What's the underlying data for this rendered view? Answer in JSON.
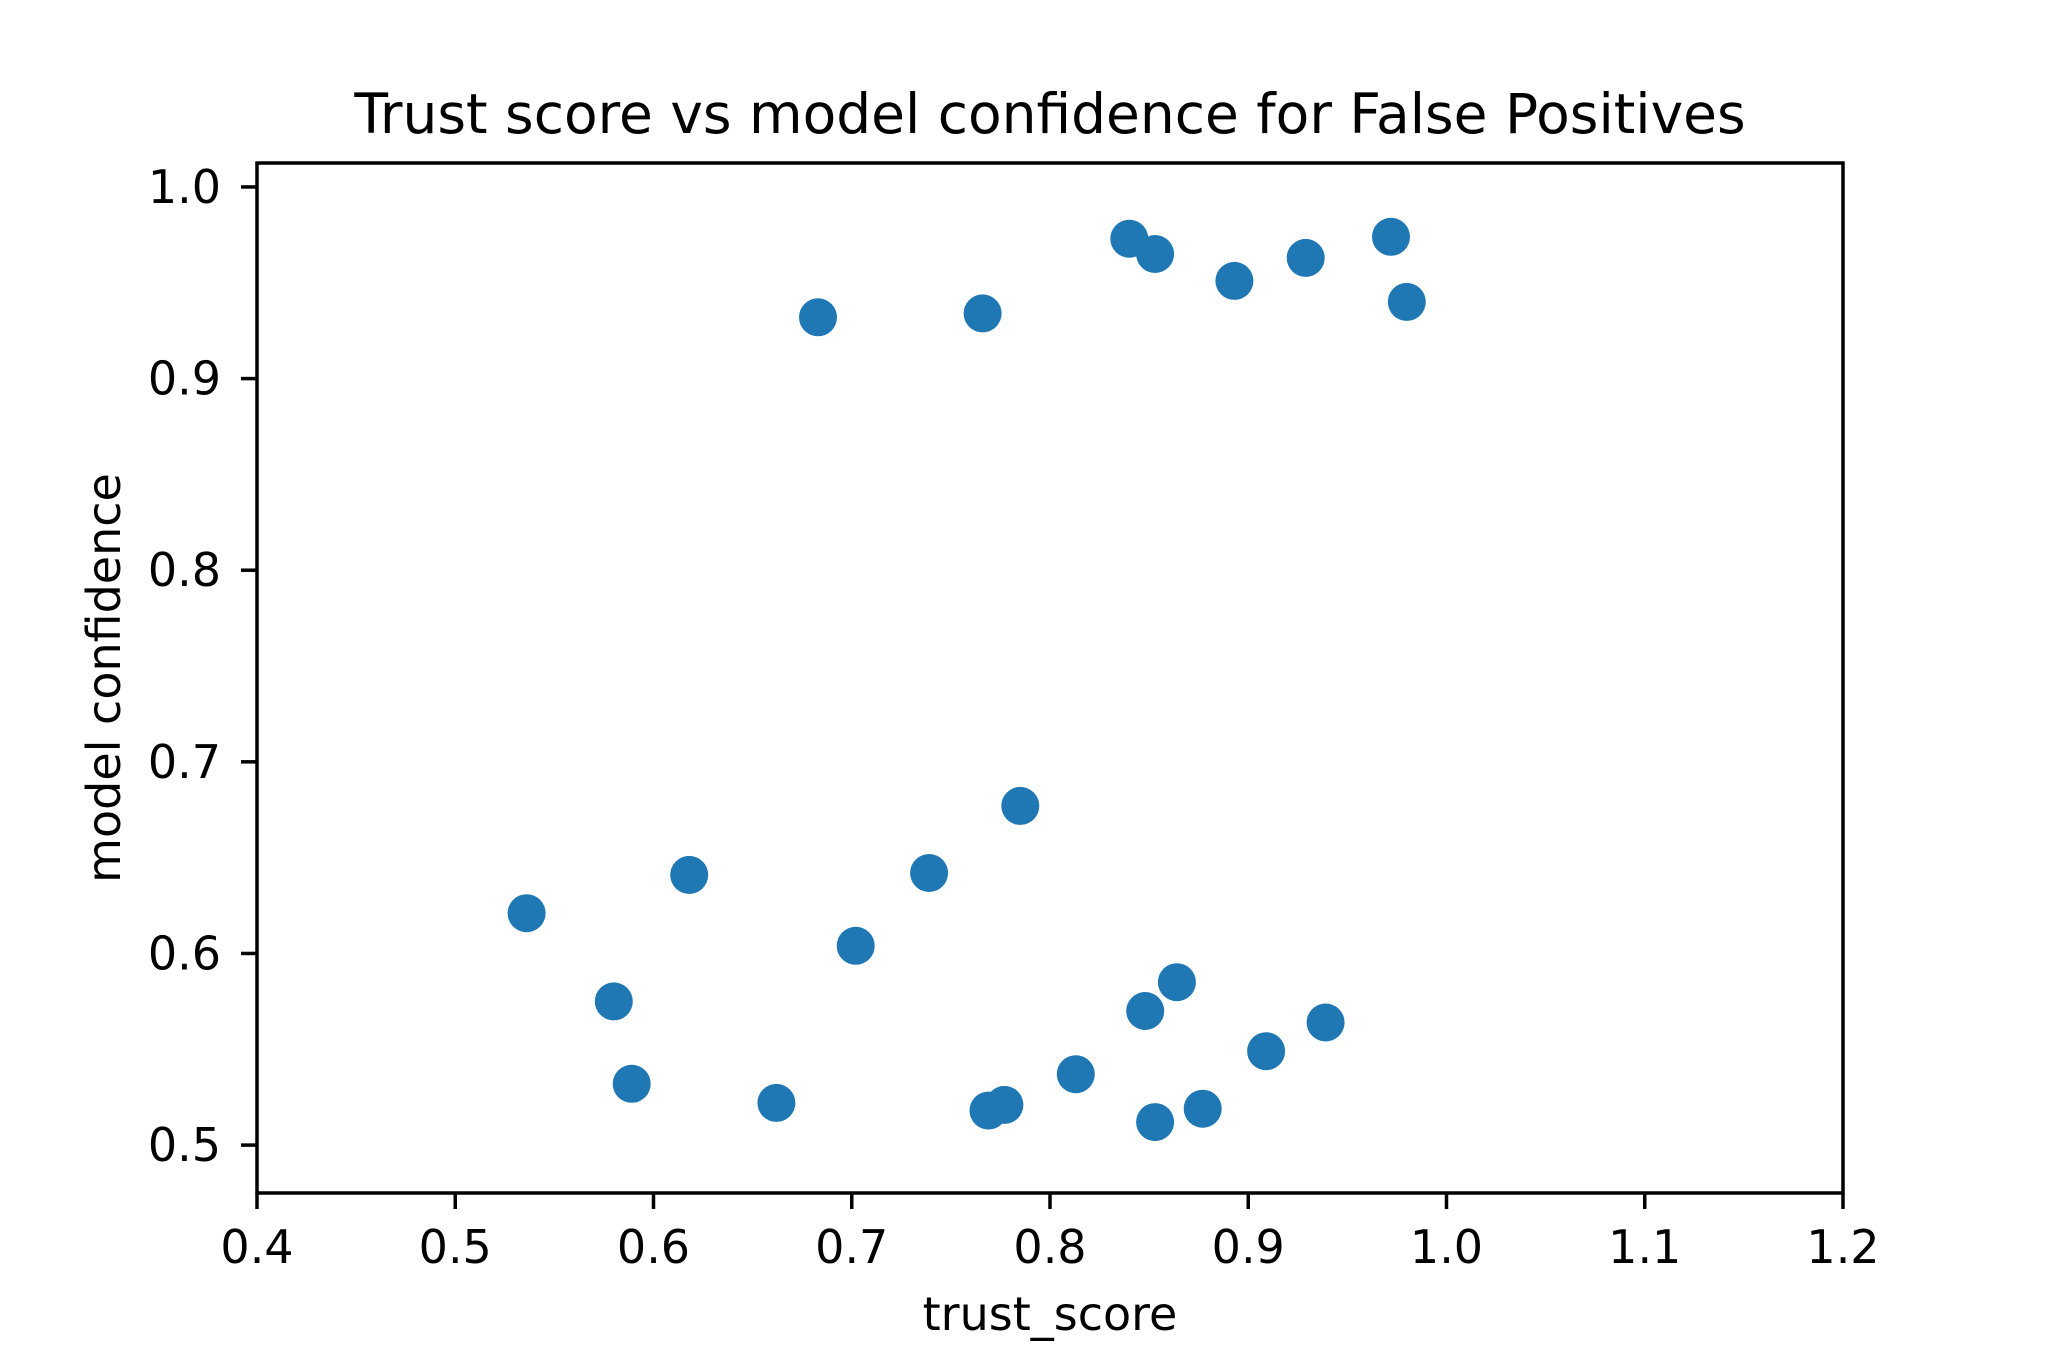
{
  "chart_data": {
    "type": "scatter",
    "title": "Trust score vs model confidence for False Positives",
    "xlabel": "trust_score",
    "ylabel": "model confidence",
    "xlim": [
      0.4,
      1.2
    ],
    "ylim": [
      0.475,
      1.0125
    ],
    "x_ticks": [
      0.4,
      0.5,
      0.6,
      0.7,
      0.8,
      0.9,
      1.0,
      1.1,
      1.2
    ],
    "x_tick_labels": [
      "0.4",
      "0.5",
      "0.6",
      "0.7",
      "0.8",
      "0.9",
      "1.0",
      "1.1",
      "1.2"
    ],
    "y_ticks": [
      0.5,
      0.6,
      0.7,
      0.8,
      0.9,
      1.0
    ],
    "y_tick_labels": [
      "0.5",
      "0.6",
      "0.7",
      "0.8",
      "0.9",
      "1.0"
    ],
    "grid": false,
    "legend_position": "none",
    "marker_color": "#1f77b4",
    "series": [
      {
        "name": "false_positives",
        "points": [
          [
            0.536,
            0.621
          ],
          [
            0.58,
            0.575
          ],
          [
            0.589,
            0.532
          ],
          [
            0.618,
            0.641
          ],
          [
            0.662,
            0.522
          ],
          [
            0.683,
            0.932
          ],
          [
            0.702,
            0.604
          ],
          [
            0.739,
            0.642
          ],
          [
            0.766,
            0.934
          ],
          [
            0.769,
            0.518
          ],
          [
            0.777,
            0.521
          ],
          [
            0.785,
            0.677
          ],
          [
            0.813,
            0.537
          ],
          [
            0.84,
            0.973
          ],
          [
            0.848,
            0.57
          ],
          [
            0.853,
            0.512
          ],
          [
            0.853,
            0.965
          ],
          [
            0.864,
            0.585
          ],
          [
            0.877,
            0.519
          ],
          [
            0.893,
            0.951
          ],
          [
            0.909,
            0.549
          ],
          [
            0.929,
            0.963
          ],
          [
            0.939,
            0.564
          ],
          [
            0.972,
            0.974
          ],
          [
            0.98,
            0.94
          ]
        ]
      }
    ]
  }
}
